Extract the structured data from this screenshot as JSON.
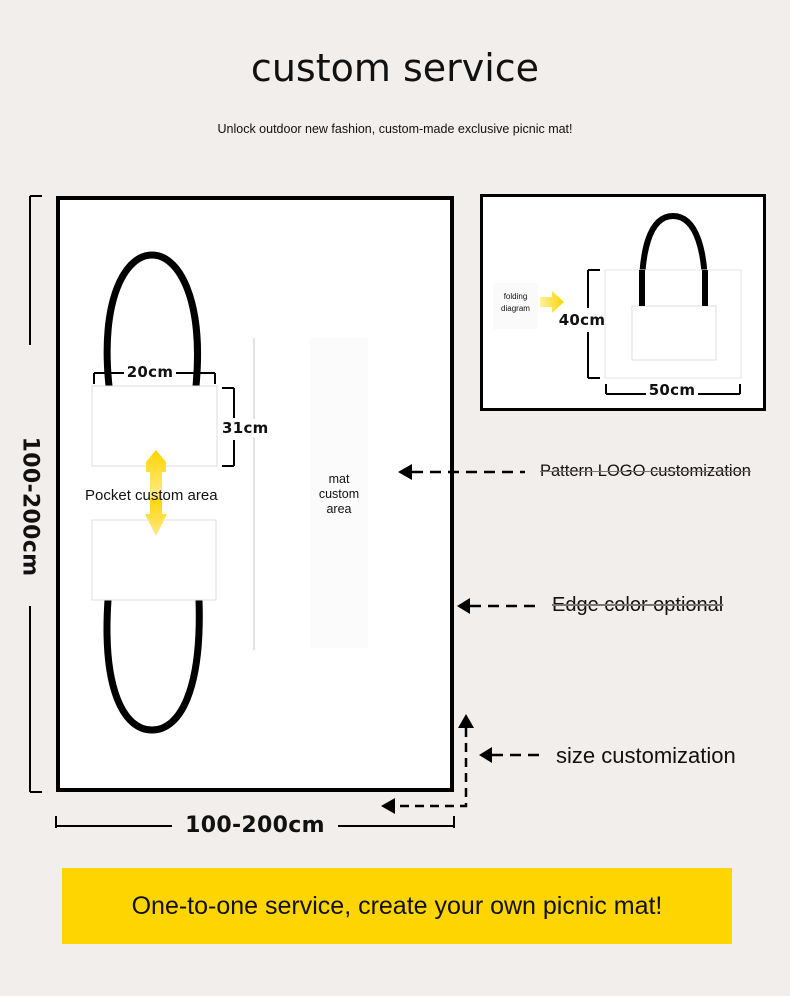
{
  "header": {
    "title": "custom service",
    "subtitle": "Unlock outdoor new fashion, custom-made exclusive picnic mat!"
  },
  "mat": {
    "height_label": "100-200cm",
    "width_label": "100-200cm",
    "pocket_width": "20cm",
    "pocket_height": "31cm",
    "pocket_area_label": "Pocket custom area",
    "mat_area_label": [
      "mat",
      "custom",
      "area"
    ]
  },
  "folding": {
    "label": [
      "folding",
      "diagram"
    ],
    "height": "40cm",
    "width": "50cm"
  },
  "callouts": {
    "pattern": "Pattern LOGO customization",
    "edge": "Edge color optional",
    "size": "size customization"
  },
  "banner": {
    "text": "One-to-one service, create your own picnic mat!"
  },
  "colors": {
    "background": "#f2eeeb",
    "banner": "#ffd500",
    "arrow_yellow": "#ffd400"
  }
}
